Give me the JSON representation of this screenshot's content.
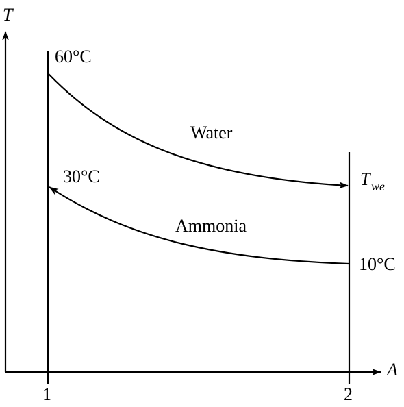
{
  "axes": {
    "y_label": "T",
    "x_label": "A",
    "x_ticks": [
      "1",
      "2"
    ]
  },
  "curves": {
    "water": {
      "label": "Water",
      "start_temp": "60°C",
      "end_temp_symbol": "T",
      "end_temp_subscript": "we"
    },
    "ammonia": {
      "label": "Ammonia",
      "start_temp": "10°C",
      "end_temp": "30°C"
    }
  },
  "colors": {
    "ink": "#000000",
    "background": "#ffffff"
  }
}
